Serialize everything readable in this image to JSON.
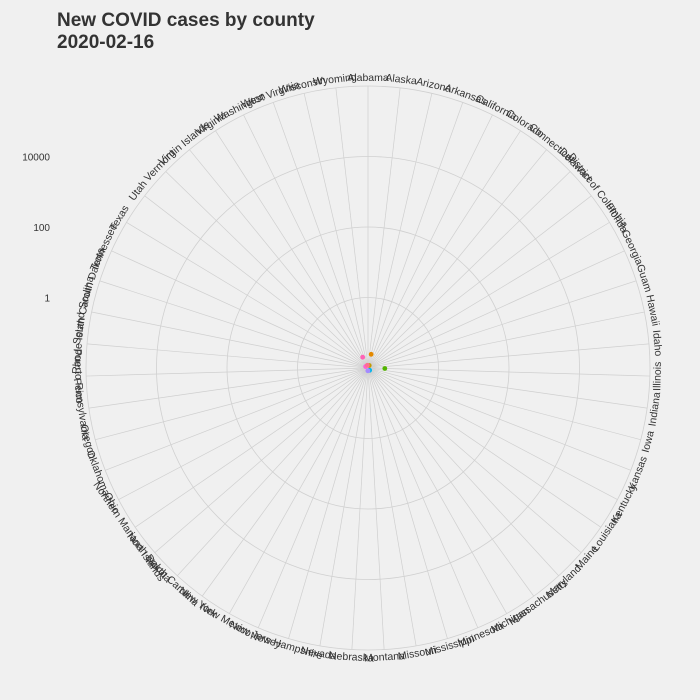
{
  "chart_data": {
    "type": "scatter",
    "coordinate_system": "polar",
    "title_line1": "New COVID cases by county",
    "title_line2": "2020-02-16",
    "radial_scale": "log10",
    "radial_ticks": [
      {
        "value": 1,
        "label": "1"
      },
      {
        "value": 100,
        "label": "100"
      },
      {
        "value": 10000,
        "label": "10000"
      }
    ],
    "radial_range": [
      0.01,
      1000000
    ],
    "grid": true,
    "legend": "none",
    "categories": [
      "Alabama",
      "Alaska",
      "Arizona",
      "Arkansas",
      "California",
      "Colorado",
      "Connecticut",
      "Delaware",
      "District of Columbia",
      "Florida",
      "Georgia",
      "Guam",
      "Hawaii",
      "Idaho",
      "Illinois",
      "Indiana",
      "Iowa",
      "Kansas",
      "Kentucky",
      "Louisiana",
      "Maine",
      "Maryland",
      "Massachusetts",
      "Michigan",
      "Minnesota",
      "Mississippi",
      "Missouri",
      "Montana",
      "Nebraska",
      "Nevada",
      "New Hampshire",
      "New Jersey",
      "New Mexico",
      "New York",
      "North Carolina",
      "North Dakota",
      "Northern Mariana Islands",
      "Ohio",
      "Oklahoma",
      "Oregon",
      "Pennsylvania",
      "Puerto Rico",
      "Rhode Island",
      "South Carolina",
      "South Dakota",
      "Tennessee",
      "Texas",
      "Utah",
      "Vermont",
      "Virgin Islands",
      "Virginia",
      "Washington",
      "West Virginia",
      "Wisconsin",
      "Wyoming"
    ],
    "points": [
      {
        "category": "Arizona",
        "value": 0.025,
        "color": "#e38900"
      },
      {
        "category": "California",
        "value": 0.012,
        "color": "#c49a00"
      },
      {
        "category": "Illinois",
        "value": 0.03,
        "color": "#53b400"
      },
      {
        "category": "Massachusetts",
        "value": 0.012,
        "color": "#00b6eb"
      },
      {
        "category": "Nebraska",
        "value": 0.012,
        "color": "#a58aff"
      },
      {
        "category": "Texas",
        "value": 0.012,
        "color": "#fb61d7"
      },
      {
        "category": "Washington",
        "value": 0.022,
        "color": "#ff63b6"
      },
      {
        "category": "Wisconsin",
        "value": 0.012,
        "color": "#ff6c91"
      }
    ]
  }
}
